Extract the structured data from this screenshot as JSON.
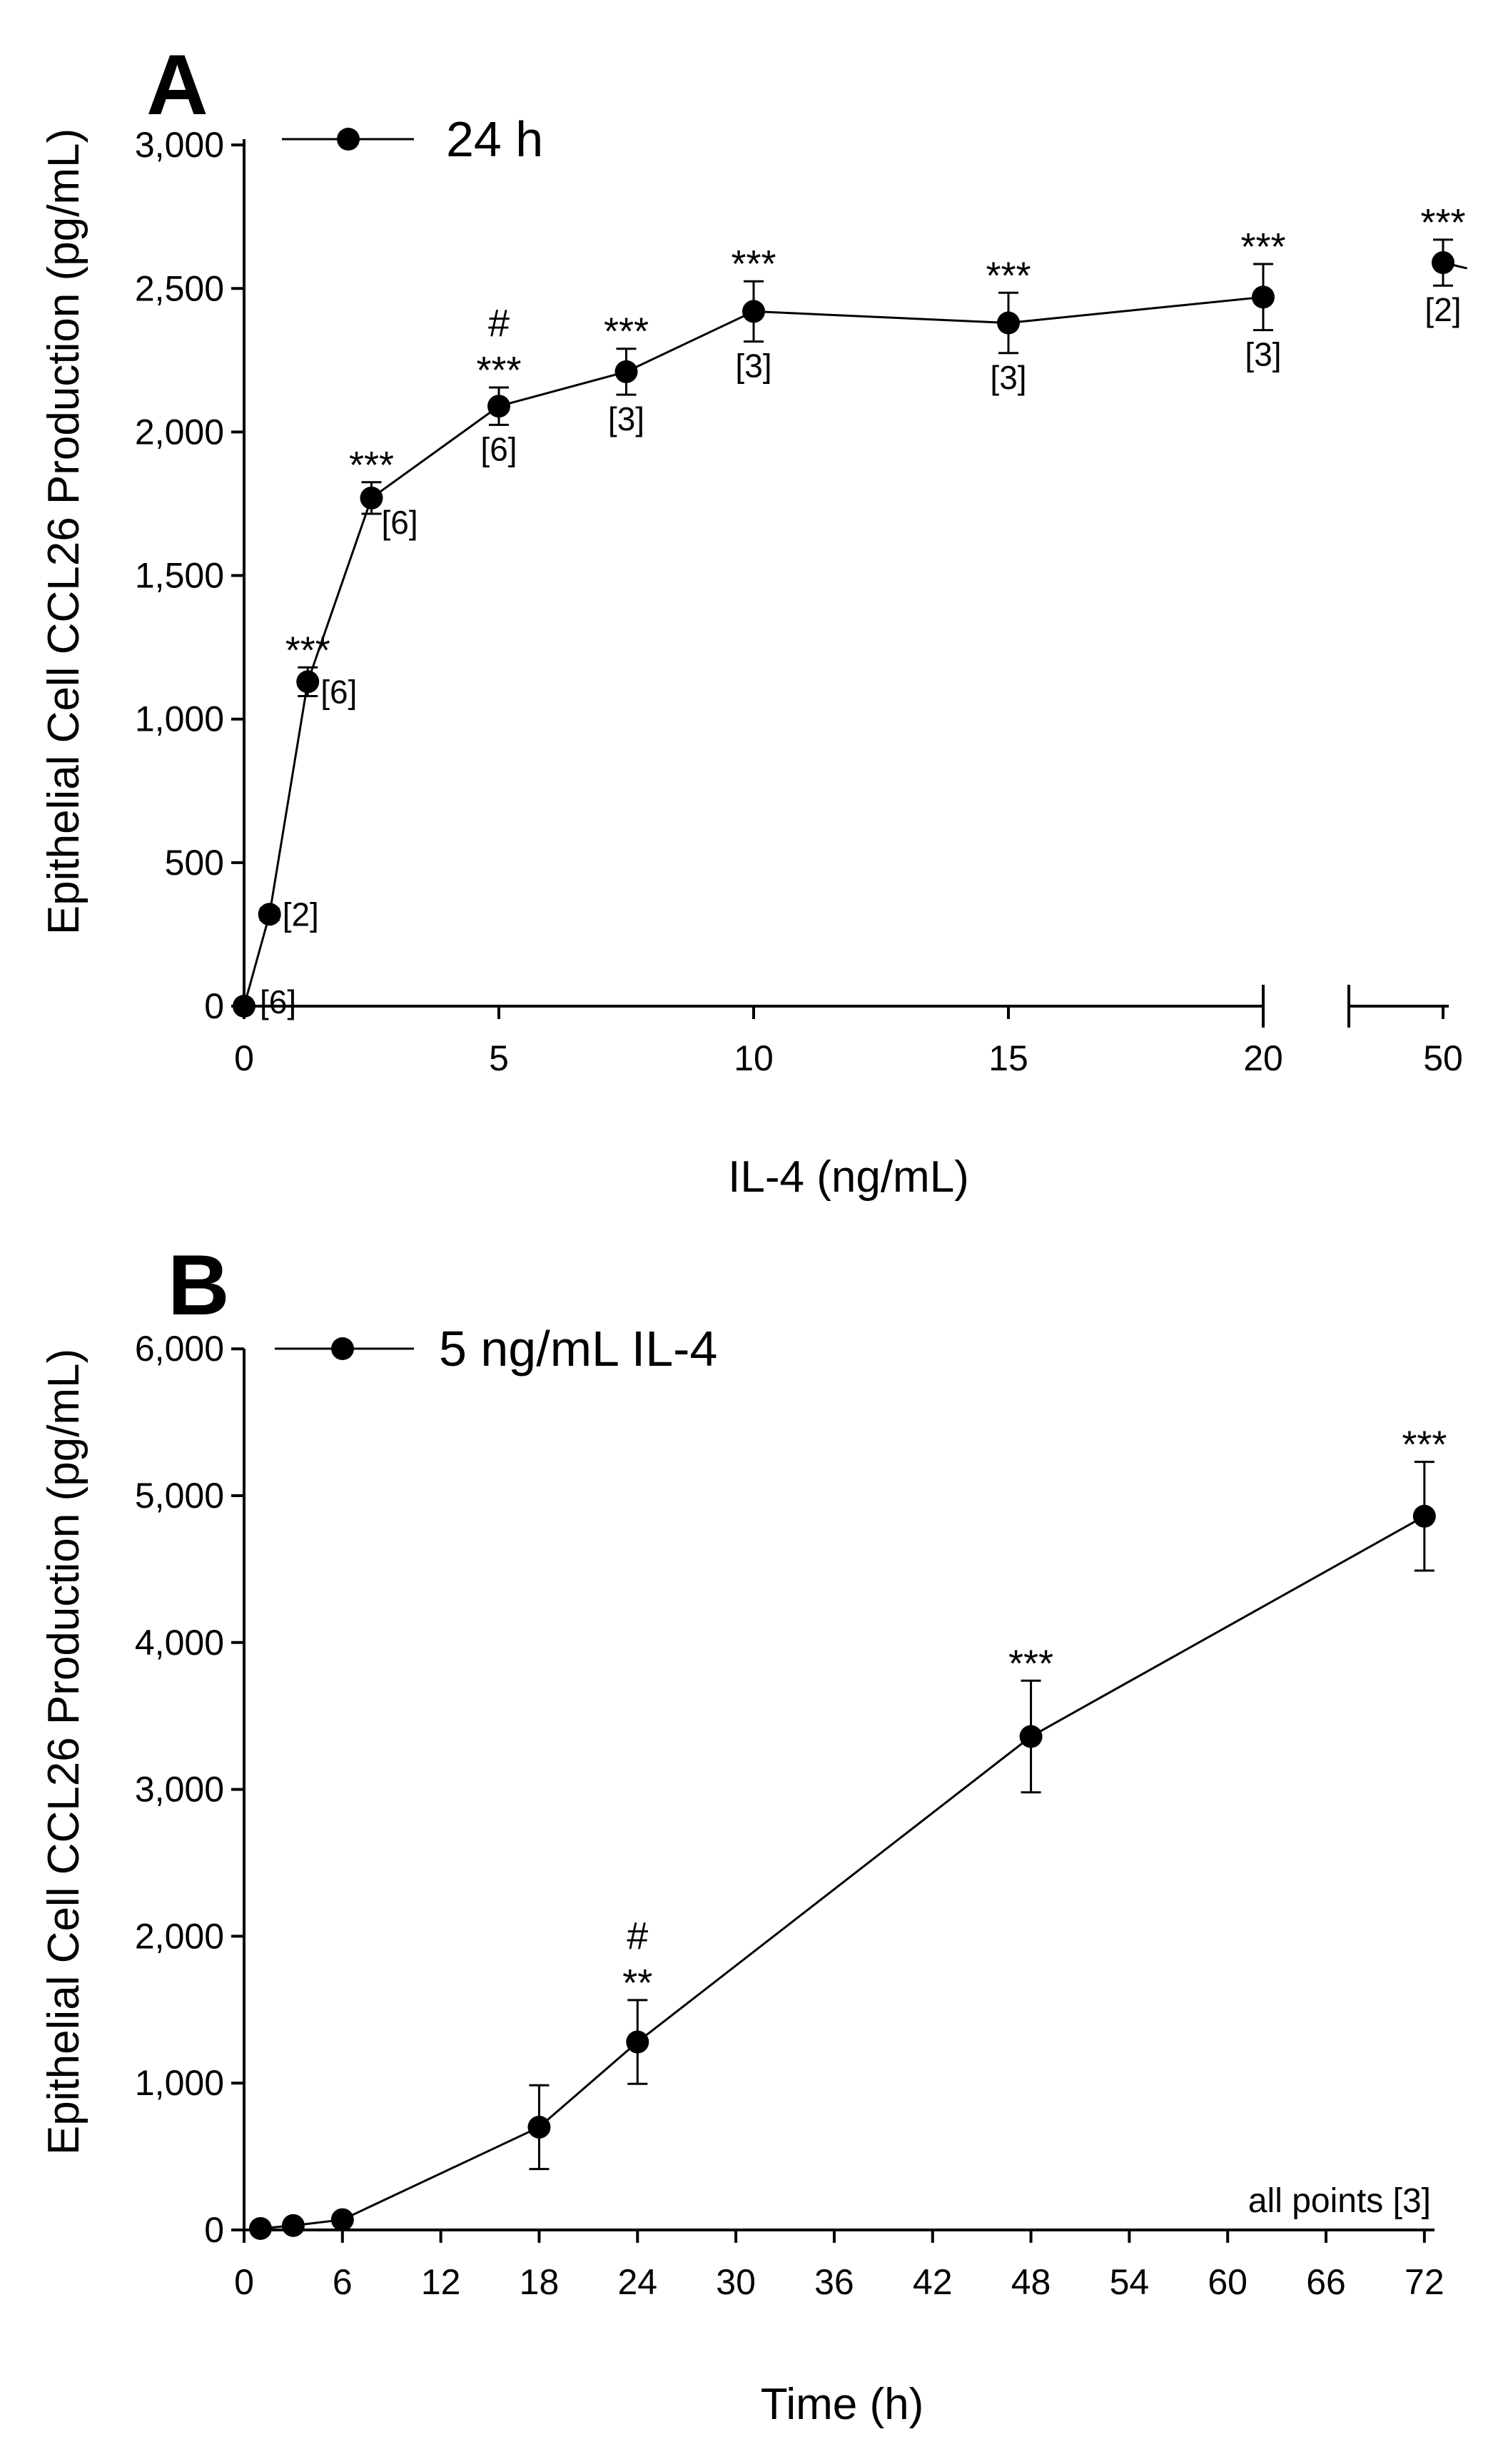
{
  "chart_data": [
    {
      "panel": "A",
      "type": "line",
      "title": "",
      "legend": "24 h",
      "xlabel": "IL-4 (ng/mL)",
      "ylabel": "Epithelial Cell CCL26 Production (pg/mL)",
      "ylim": [
        0,
        3000
      ],
      "yticks": [
        0,
        500,
        1000,
        1500,
        2000,
        2500,
        3000
      ],
      "ytick_labels": [
        "0",
        "500",
        "1,000",
        "1,500",
        "2,000",
        "2,500",
        "3,000"
      ],
      "xticks": [
        0,
        5,
        10,
        15,
        20,
        50
      ],
      "xtick_labels": [
        "0",
        "5",
        "10",
        "15",
        "20",
        "50"
      ],
      "x_axis_break": "between 20 and 50",
      "points": [
        {
          "x": 0,
          "y": 0,
          "err": 10,
          "sig": "",
          "hash": "",
          "n": "[6]"
        },
        {
          "x": 0.5,
          "y": 320,
          "err": 20,
          "sig": "",
          "hash": "",
          "n": "[2]"
        },
        {
          "x": 1.25,
          "y": 1130,
          "err": 50,
          "sig": "***",
          "hash": "",
          "n": "[6]"
        },
        {
          "x": 2.5,
          "y": 1770,
          "err": 55,
          "sig": "***",
          "hash": "",
          "n": "[6]"
        },
        {
          "x": 5,
          "y": 2090,
          "err": 65,
          "sig": "***",
          "hash": "#",
          "n": "[6]"
        },
        {
          "x": 7.5,
          "y": 2210,
          "err": 80,
          "sig": "***",
          "hash": "",
          "n": "[3]"
        },
        {
          "x": 10,
          "y": 2420,
          "err": 105,
          "sig": "***",
          "hash": "",
          "n": "[3]"
        },
        {
          "x": 15,
          "y": 2380,
          "err": 105,
          "sig": "***",
          "hash": "",
          "n": "[3]"
        },
        {
          "x": 20,
          "y": 2470,
          "err": 115,
          "sig": "***",
          "hash": "",
          "n": "[3]"
        },
        {
          "x": 50,
          "y": 2590,
          "err": 80,
          "sig": "***",
          "hash": "",
          "n": "[2]"
        }
      ]
    },
    {
      "panel": "B",
      "type": "line",
      "title": "",
      "legend": "5 ng/mL IL-4",
      "xlabel": "Time (h)",
      "ylabel": "Epithelial Cell CCL26 Production (pg/mL)",
      "ylim": [
        0,
        6000
      ],
      "xlim": [
        0,
        72
      ],
      "yticks": [
        0,
        1000,
        2000,
        3000,
        4000,
        5000,
        6000
      ],
      "ytick_labels": [
        "0",
        "1,000",
        "2,000",
        "3,000",
        "4,000",
        "5,000",
        "6,000"
      ],
      "xticks": [
        0,
        6,
        12,
        18,
        24,
        30,
        36,
        42,
        48,
        54,
        60,
        66,
        72
      ],
      "xtick_labels": [
        "0",
        "6",
        "12",
        "18",
        "24",
        "30",
        "36",
        "42",
        "48",
        "54",
        "60",
        "66",
        "72"
      ],
      "note": "all points [3]",
      "points": [
        {
          "x": 1,
          "y": 10,
          "err": 10,
          "sig": "",
          "hash": ""
        },
        {
          "x": 3,
          "y": 30,
          "err": 10,
          "sig": "",
          "hash": ""
        },
        {
          "x": 6,
          "y": 70,
          "err": 15,
          "sig": "",
          "hash": ""
        },
        {
          "x": 18,
          "y": 700,
          "err": 285,
          "sig": "",
          "hash": ""
        },
        {
          "x": 24,
          "y": 1280,
          "err": 285,
          "sig": "**",
          "hash": "#"
        },
        {
          "x": 48,
          "y": 3360,
          "err": 380,
          "sig": "***",
          "hash": ""
        },
        {
          "x": 72,
          "y": 4860,
          "err": 370,
          "sig": "***",
          "hash": ""
        }
      ]
    }
  ]
}
